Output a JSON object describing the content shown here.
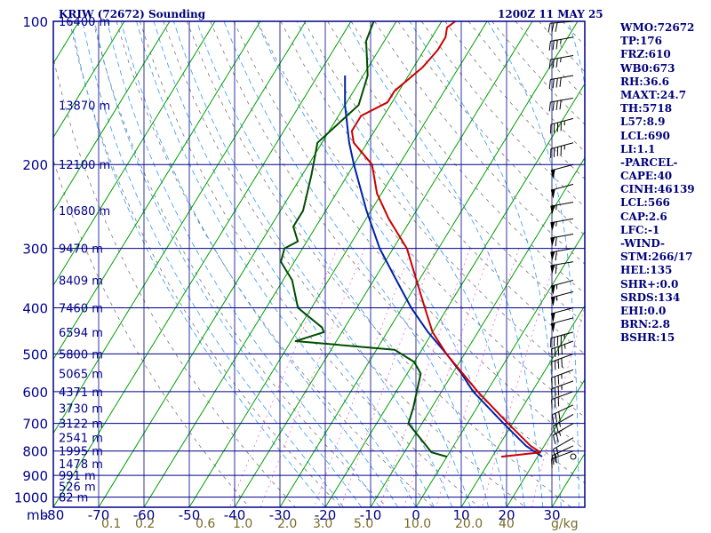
{
  "header": {
    "title": "KRIW (72672) Sounding",
    "timestamp": "1200Z 11 MAY 25"
  },
  "indices": [
    "WMO:72672",
    "TP:176",
    "FRZ:610",
    "WB0:673",
    "RH:36.6",
    "MAXT:24.7",
    "TH:5718",
    "L57:8.9",
    "LCL:690",
    "LI:1.1",
    "-PARCEL-",
    "CAPE:40",
    "CINH:46139",
    "LCL:566",
    "CAP:2.6",
    "LFC:-1",
    "-WIND-",
    "STM:266/17",
    "HEL:135",
    "SHR+:0.0",
    "SRDS:134",
    "EHI:0.0",
    "BRN:2.8",
    "BSHR:15"
  ],
  "colors": {
    "frame": "#00008b",
    "text": "#00008b",
    "isobar": "#00008b",
    "isotherm": "#00a000",
    "dry_adiabat": "#777777",
    "moist_adiabat": "#3399ff",
    "mixing_ratio": "#ff66cc",
    "wind": "#000000",
    "temperature": "#cc0000",
    "dewpoint": "#004d00",
    "parcel": "#0022aa",
    "mixing_ratio_label": "#7a6a2a"
  },
  "chart_data": {
    "type": "skew-t",
    "xlabel": "",
    "ylabel": "mb",
    "pressure_levels": [
      100,
      200,
      300,
      400,
      500,
      600,
      700,
      800,
      900,
      1000
    ],
    "pressure_range": [
      100,
      1050
    ],
    "temperature_ticks": [
      -80,
      -70,
      -60,
      -50,
      -40,
      -30,
      -20,
      -10,
      0,
      10,
      20,
      30
    ],
    "temp_range": [
      -80,
      40
    ],
    "height_labels": [
      {
        "p": 100,
        "label": "16400 m"
      },
      {
        "p": 150,
        "label": "13870 m"
      },
      {
        "p": 200,
        "label": "12100 m"
      },
      {
        "p": 250,
        "label": "10680 m"
      },
      {
        "p": 300,
        "label": "9470 m"
      },
      {
        "p": 350,
        "label": "8409 m"
      },
      {
        "p": 400,
        "label": "7460 m"
      },
      {
        "p": 450,
        "label": "6594 m"
      },
      {
        "p": 500,
        "label": "5800 m"
      },
      {
        "p": 550,
        "label": "5065 m"
      },
      {
        "p": 600,
        "label": "4371 m"
      },
      {
        "p": 650,
        "label": "3730 m"
      },
      {
        "p": 700,
        "label": "3122 m"
      },
      {
        "p": 750,
        "label": "2541 m"
      },
      {
        "p": 800,
        "label": "1995 m"
      },
      {
        "p": 850,
        "label": "1478 m"
      },
      {
        "p": 900,
        "label": "991 m"
      },
      {
        "p": 950,
        "label": "526 m"
      },
      {
        "p": 1000,
        "label": "82 m"
      }
    ],
    "mixing_ratio_labels": [
      "0.1",
      "0.2",
      "0.6",
      "1.0",
      "2.0",
      "3.0",
      "5.0",
      "10.0",
      "20.0",
      "40",
      "g/kg"
    ],
    "mixing_ratio_lines": [
      0.1,
      0.2,
      0.6,
      1,
      2,
      3,
      5,
      10,
      20,
      40
    ],
    "temperature_profile": [
      [
        822,
        12
      ],
      [
        805,
        20
      ],
      [
        780,
        17
      ],
      [
        700,
        9
      ],
      [
        600,
        -2
      ],
      [
        500,
        -14
      ],
      [
        450,
        -20
      ],
      [
        400,
        -25
      ],
      [
        300,
        -37
      ],
      [
        260,
        -45
      ],
      [
        230,
        -51
      ],
      [
        200,
        -56
      ],
      [
        180,
        -63
      ],
      [
        170,
        -65
      ],
      [
        158,
        -65
      ],
      [
        148,
        -61
      ],
      [
        140,
        -61
      ],
      [
        125,
        -58
      ],
      [
        115,
        -57
      ],
      [
        108,
        -57
      ],
      [
        103,
        -58
      ],
      [
        100,
        -57
      ]
    ],
    "dewpoint_profile": [
      [
        822,
        0
      ],
      [
        805,
        -4
      ],
      [
        780,
        -6
      ],
      [
        700,
        -13
      ],
      [
        650,
        -14
      ],
      [
        550,
        -17
      ],
      [
        520,
        -20
      ],
      [
        490,
        -26
      ],
      [
        470,
        -49
      ],
      [
        450,
        -44
      ],
      [
        440,
        -45
      ],
      [
        400,
        -53
      ],
      [
        350,
        -58
      ],
      [
        320,
        -63
      ],
      [
        300,
        -64
      ],
      [
        290,
        -62
      ],
      [
        270,
        -65
      ],
      [
        250,
        -65
      ],
      [
        210,
        -68
      ],
      [
        180,
        -71
      ],
      [
        150,
        -67
      ],
      [
        130,
        -69
      ],
      [
        110,
        -74
      ],
      [
        100,
        -75
      ]
    ],
    "parcel_profile": [
      [
        822,
        21
      ],
      [
        780,
        16
      ],
      [
        700,
        8
      ],
      [
        600,
        -3
      ],
      [
        550,
        -8
      ],
      [
        500,
        -14
      ],
      [
        450,
        -21
      ],
      [
        400,
        -28
      ],
      [
        350,
        -35
      ],
      [
        300,
        -43
      ],
      [
        250,
        -51
      ],
      [
        200,
        -60
      ],
      [
        180,
        -64
      ],
      [
        150,
        -70
      ],
      [
        130,
        -74
      ]
    ],
    "wind_barbs": [
      {
        "p": 822,
        "dir": 300,
        "spd": 0
      },
      {
        "p": 800,
        "dir": 250,
        "spd": 15
      },
      {
        "p": 780,
        "dir": 245,
        "spd": 20
      },
      {
        "p": 750,
        "dir": 240,
        "spd": 20
      },
      {
        "p": 700,
        "dir": 240,
        "spd": 25
      },
      {
        "p": 670,
        "dir": 240,
        "spd": 25
      },
      {
        "p": 640,
        "dir": 245,
        "spd": 30
      },
      {
        "p": 600,
        "dir": 250,
        "spd": 30
      },
      {
        "p": 570,
        "dir": 250,
        "spd": 35
      },
      {
        "p": 540,
        "dir": 250,
        "spd": 35
      },
      {
        "p": 500,
        "dir": 250,
        "spd": 40
      },
      {
        "p": 470,
        "dir": 250,
        "spd": 45
      },
      {
        "p": 450,
        "dir": 255,
        "spd": 45
      },
      {
        "p": 420,
        "dir": 255,
        "spd": 50
      },
      {
        "p": 400,
        "dir": 255,
        "spd": 50
      },
      {
        "p": 370,
        "dir": 255,
        "spd": 55
      },
      {
        "p": 350,
        "dir": 255,
        "spd": 55
      },
      {
        "p": 320,
        "dir": 260,
        "spd": 60
      },
      {
        "p": 300,
        "dir": 260,
        "spd": 60
      },
      {
        "p": 280,
        "dir": 260,
        "spd": 60
      },
      {
        "p": 260,
        "dir": 260,
        "spd": 55
      },
      {
        "p": 240,
        "dir": 260,
        "spd": 55
      },
      {
        "p": 220,
        "dir": 255,
        "spd": 50
      },
      {
        "p": 200,
        "dir": 255,
        "spd": 50
      },
      {
        "p": 180,
        "dir": 255,
        "spd": 45
      },
      {
        "p": 160,
        "dir": 255,
        "spd": 45
      },
      {
        "p": 145,
        "dir": 260,
        "spd": 40
      },
      {
        "p": 130,
        "dir": 260,
        "spd": 40
      },
      {
        "p": 118,
        "dir": 260,
        "spd": 35
      },
      {
        "p": 108,
        "dir": 260,
        "spd": 35
      },
      {
        "p": 100,
        "dir": 265,
        "spd": 30
      }
    ]
  }
}
